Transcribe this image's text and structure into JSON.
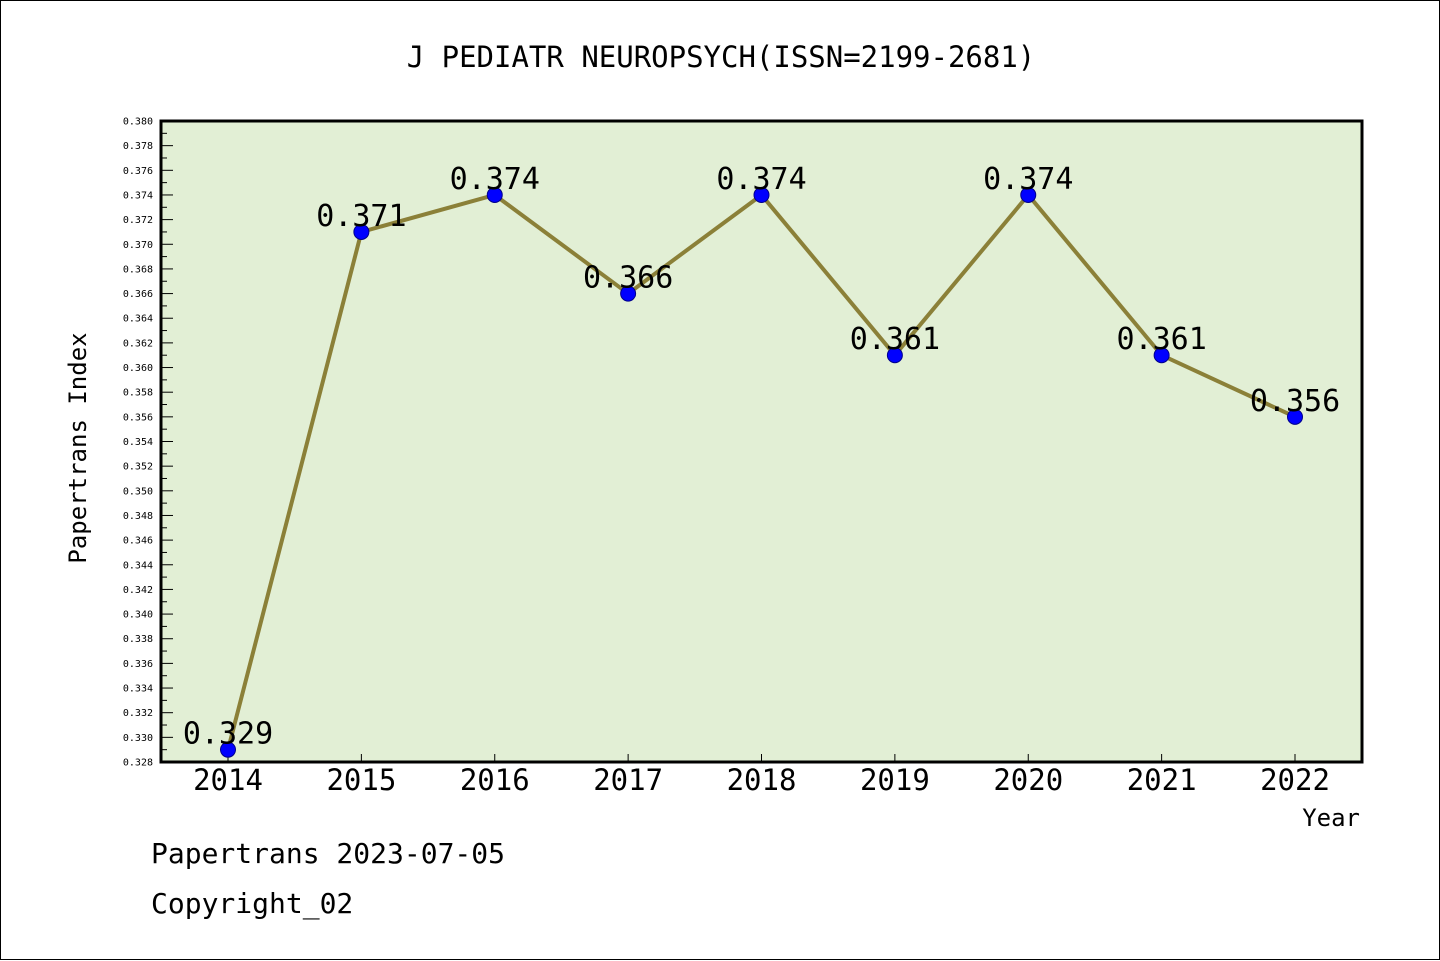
{
  "chart_data": {
    "type": "line",
    "title": "J PEDIATR NEUROPSYCH(ISSN=2199-2681)",
    "xlabel": "Year",
    "ylabel": "Papertrans Index",
    "categories": [
      "2014",
      "2015",
      "2016",
      "2017",
      "2018",
      "2019",
      "2020",
      "2021",
      "2022"
    ],
    "values": [
      0.329,
      0.371,
      0.374,
      0.366,
      0.374,
      0.361,
      0.374,
      0.361,
      0.356
    ],
    "data_labels": [
      "0.329",
      "0.371",
      "0.374",
      "0.366",
      "0.374",
      "0.361",
      "0.374",
      "0.361",
      "0.356"
    ],
    "ylim": [
      0.328,
      0.38
    ],
    "y_ticks": [
      "0.328",
      "0.330",
      "0.332",
      "0.334",
      "0.336",
      "0.338",
      "0.340",
      "0.342",
      "0.344",
      "0.346",
      "0.348",
      "0.350",
      "0.352",
      "0.354",
      "0.356",
      "0.358",
      "0.360",
      "0.362",
      "0.364",
      "0.366",
      "0.368",
      "0.370",
      "0.372",
      "0.374",
      "0.376",
      "0.378",
      "0.380"
    ],
    "grid": false,
    "legend": "none",
    "colors": {
      "plot_background": "#e2efd5",
      "line": "#8b8038",
      "marker": "#0000ff"
    }
  },
  "footer": {
    "generated": "Papertrans 2023-07-05",
    "copyright": "Copyright_02"
  }
}
